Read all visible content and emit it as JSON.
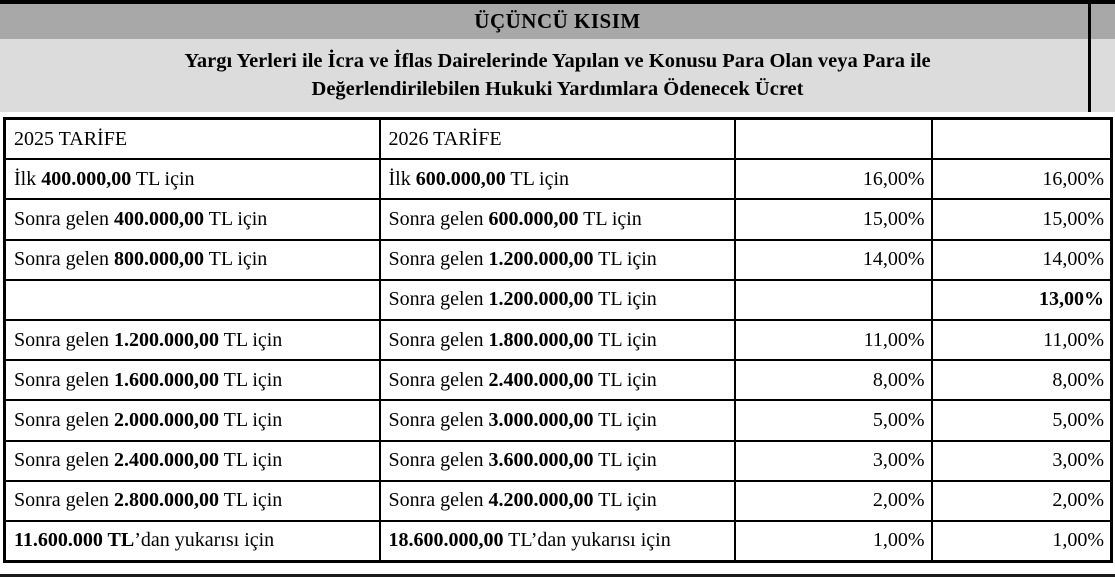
{
  "page": {
    "background": "#ffffff",
    "kicker_bg": "#a8a8a8",
    "title_bg": "#dcdcdc",
    "border_color": "#000000"
  },
  "section": {
    "kicker": "ÜÇÜNCÜ KISIM",
    "title_line1": "Yargı Yerleri ile İcra ve İflas Dairelerinde Yapılan ve Konusu Para Olan veya Para ile",
    "title_line2": "Değerlendirilebilen Hukuki Yardımlara Ödenecek Ücret"
  },
  "table": {
    "header_2025": "2025 TARİFE",
    "header_2026": "2026 TARİFE",
    "rows": [
      {
        "y2025": [
          {
            "t": "İlk ",
            "b": false
          },
          {
            "t": "400.000,00",
            "b": true
          },
          {
            "t": " TL için",
            "b": false
          }
        ],
        "y2026": [
          {
            "t": "İlk ",
            "b": false
          },
          {
            "t": "600.000,00",
            "b": true
          },
          {
            "t": " TL için",
            "b": false
          }
        ],
        "p2025": "16,00%",
        "p2025_bold": false,
        "p2026": "16,00%",
        "p2026_bold": false
      },
      {
        "y2025": [
          {
            "t": "Sonra gelen ",
            "b": false
          },
          {
            "t": "400.000,00",
            "b": true
          },
          {
            "t": " TL için",
            "b": false
          }
        ],
        "y2026": [
          {
            "t": "Sonra gelen ",
            "b": false
          },
          {
            "t": "600.000,00",
            "b": true
          },
          {
            "t": " TL için",
            "b": false
          }
        ],
        "p2025": "15,00%",
        "p2025_bold": false,
        "p2026": "15,00%",
        "p2026_bold": false
      },
      {
        "y2025": [
          {
            "t": "Sonra gelen ",
            "b": false
          },
          {
            "t": "800.000,00",
            "b": true
          },
          {
            "t": " TL için",
            "b": false
          }
        ],
        "y2026": [
          {
            "t": "Sonra gelen ",
            "b": false
          },
          {
            "t": "1.200.000,00",
            "b": true
          },
          {
            "t": " TL için",
            "b": false
          }
        ],
        "p2025": "14,00%",
        "p2025_bold": false,
        "p2026": "14,00%",
        "p2026_bold": false
      },
      {
        "y2025": [],
        "y2026": [
          {
            "t": "Sonra gelen ",
            "b": false
          },
          {
            "t": "1.200.000,00",
            "b": true
          },
          {
            "t": " TL için",
            "b": false
          }
        ],
        "p2025": "",
        "p2025_bold": false,
        "p2026": "13,00%",
        "p2026_bold": true
      },
      {
        "y2025": [
          {
            "t": "Sonra gelen ",
            "b": false
          },
          {
            "t": "1.200.000,00",
            "b": true
          },
          {
            "t": " TL için",
            "b": false
          }
        ],
        "y2026": [
          {
            "t": "Sonra gelen ",
            "b": false
          },
          {
            "t": "1.800.000,00",
            "b": true
          },
          {
            "t": " TL için",
            "b": false
          }
        ],
        "p2025": "11,00%",
        "p2025_bold": false,
        "p2026": "11,00%",
        "p2026_bold": false
      },
      {
        "y2025": [
          {
            "t": "Sonra gelen ",
            "b": false
          },
          {
            "t": "1.600.000,00",
            "b": true
          },
          {
            "t": " TL için",
            "b": false
          }
        ],
        "y2026": [
          {
            "t": "Sonra gelen ",
            "b": false
          },
          {
            "t": "2.400.000,00",
            "b": true
          },
          {
            "t": " TL için",
            "b": false
          }
        ],
        "p2025": "8,00%",
        "p2025_bold": false,
        "p2026": "8,00%",
        "p2026_bold": false
      },
      {
        "y2025": [
          {
            "t": "Sonra gelen ",
            "b": false
          },
          {
            "t": "2.000.000,00",
            "b": true
          },
          {
            "t": " TL için",
            "b": false
          }
        ],
        "y2026": [
          {
            "t": "Sonra gelen ",
            "b": false
          },
          {
            "t": "3.000.000,00",
            "b": true
          },
          {
            "t": " TL için",
            "b": false
          }
        ],
        "p2025": "5,00%",
        "p2025_bold": false,
        "p2026": "5,00%",
        "p2026_bold": false
      },
      {
        "y2025": [
          {
            "t": "Sonra gelen ",
            "b": false
          },
          {
            "t": "2.400.000,00",
            "b": true
          },
          {
            "t": " TL için",
            "b": false
          }
        ],
        "y2026": [
          {
            "t": "Sonra gelen ",
            "b": false
          },
          {
            "t": "3.600.000,00",
            "b": true
          },
          {
            "t": " TL için",
            "b": false
          }
        ],
        "p2025": "3,00%",
        "p2025_bold": false,
        "p2026": "3,00%",
        "p2026_bold": false
      },
      {
        "y2025": [
          {
            "t": "Sonra gelen ",
            "b": false
          },
          {
            "t": "2.800.000,00",
            "b": true
          },
          {
            "t": " TL için",
            "b": false
          }
        ],
        "y2026": [
          {
            "t": "Sonra gelen ",
            "b": false
          },
          {
            "t": "4.200.000,00",
            "b": true
          },
          {
            "t": " TL için",
            "b": false
          }
        ],
        "p2025": "2,00%",
        "p2025_bold": false,
        "p2026": "2,00%",
        "p2026_bold": false
      },
      {
        "y2025": [
          {
            "t": "11.600.000 TL",
            "b": true
          },
          {
            "t": "’dan yukarısı için",
            "b": false
          }
        ],
        "y2026": [
          {
            "t": "18.600.000,00",
            "b": true
          },
          {
            "t": " TL’dan yukarısı için",
            "b": false
          }
        ],
        "p2025": "1,00%",
        "p2025_bold": false,
        "p2026": "1,00%",
        "p2026_bold": false
      }
    ]
  }
}
